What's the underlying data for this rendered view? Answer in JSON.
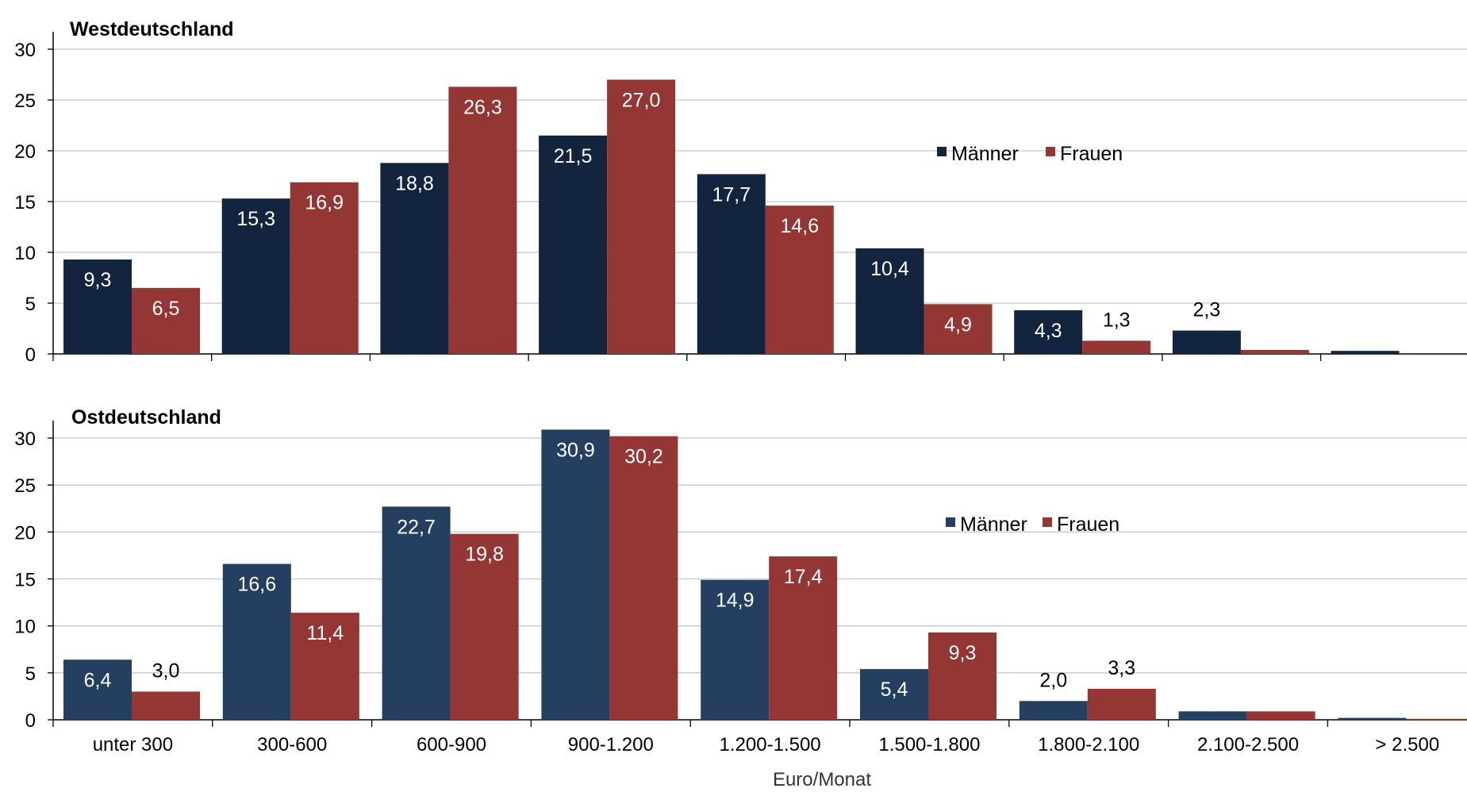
{
  "chart_data": [
    {
      "type": "bar",
      "title": "Westdeutschland",
      "categories": [
        "unter 300",
        "300-600",
        "600-900",
        "900-1.200",
        "1.200-1.500",
        "1.500-1.800",
        "1.800-2.100",
        "2.100-2.500",
        "> 2.500"
      ],
      "series": [
        {
          "name": "Männer",
          "values": [
            9.3,
            15.3,
            18.8,
            21.5,
            17.7,
            10.4,
            4.3,
            2.3,
            0.3
          ],
          "labels": [
            "9,3",
            "15,3",
            "18,8",
            "21,5",
            "17,7",
            "10,4",
            "4,3",
            "2,3",
            "0,3"
          ],
          "color": "#13243f"
        },
        {
          "name": "Frauen",
          "values": [
            6.5,
            16.9,
            26.3,
            27.0,
            14.6,
            4.9,
            1.3,
            0.4,
            0.0
          ],
          "labels": [
            "6,5",
            "16,9",
            "26,3",
            "27,0",
            "14,6",
            "4,9",
            "1,3",
            "0,4",
            "0,0"
          ],
          "color": "#943634"
        }
      ],
      "y_ticks": [
        "0",
        "5",
        "10",
        "15",
        "20",
        "25",
        "30"
      ],
      "ylim": [
        0,
        30
      ],
      "grid": true,
      "legend": "right-center"
    },
    {
      "type": "bar",
      "title": "Ostdeutschland",
      "categories": [
        "unter 300",
        "300-600",
        "600-900",
        "900-1.200",
        "1.200-1.500",
        "1.500-1.800",
        "1.800-2.100",
        "2.100-2.500",
        "> 2.500"
      ],
      "series": [
        {
          "name": "Männer",
          "values": [
            6.4,
            16.6,
            22.7,
            30.9,
            14.9,
            5.4,
            2.0,
            0.9,
            0.2
          ],
          "labels": [
            "6,4",
            "16,6",
            "22,7",
            "30,9",
            "14,9",
            "5,4",
            "2,0",
            "0,9",
            "0,2"
          ],
          "color": "#243f60"
        },
        {
          "name": "Frauen",
          "values": [
            3.0,
            11.4,
            19.8,
            30.2,
            17.4,
            9.3,
            3.3,
            0.9,
            0.1
          ],
          "labels": [
            "3,0",
            "11,4",
            "19,8",
            "30,2",
            "17,4",
            "9,3",
            "3,3",
            "0,9",
            "0,1"
          ],
          "color": "#943634"
        }
      ],
      "y_ticks": [
        "0",
        "5",
        "10",
        "15",
        "20",
        "25",
        "30"
      ],
      "ylim": [
        0,
        30
      ],
      "grid": true,
      "legend": "right-center"
    }
  ],
  "xlabel": "Euro/Monat",
  "colors": {
    "grid": "#c8c8c8",
    "axis": "#000000",
    "label_dark": "#000000",
    "label_light": "#ffffff"
  }
}
